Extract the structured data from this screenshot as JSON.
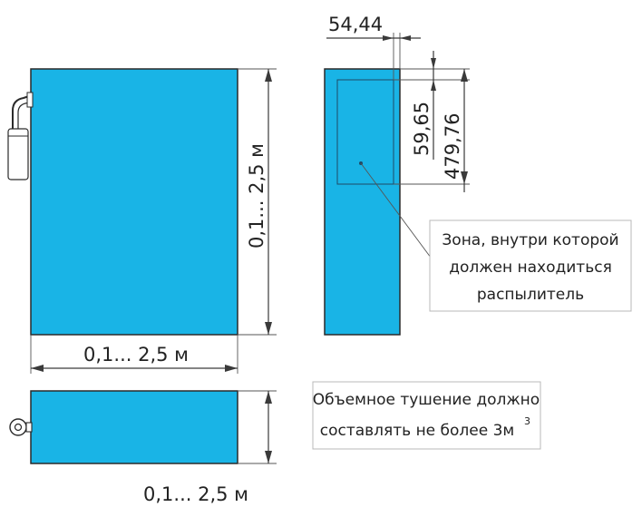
{
  "colors": {
    "fill": "#19B4E6",
    "outline": "#2a2a2a",
    "line": "#3a3a3a"
  },
  "dimensions": {
    "front_width": "0,1... 2,5 м",
    "front_height": "0,1... 2,5 м",
    "top_depth": "0,1... 2,5 м",
    "side_zone_width": "54,44",
    "side_zone_height": "59,65",
    "side_zone_offset": "479,76"
  },
  "notes": {
    "zone": [
      "Зона, внутри которой",
      "должен находиться",
      "распылитель"
    ],
    "volume_text": "Объемное тушение должно",
    "volume_text_2": "составлять не более 3м",
    "volume_superscript": "3"
  },
  "icons": {
    "front_sprayer": "sprayer-cylinder-icon",
    "top_sprayer": "sprayer-top-view-icon"
  }
}
